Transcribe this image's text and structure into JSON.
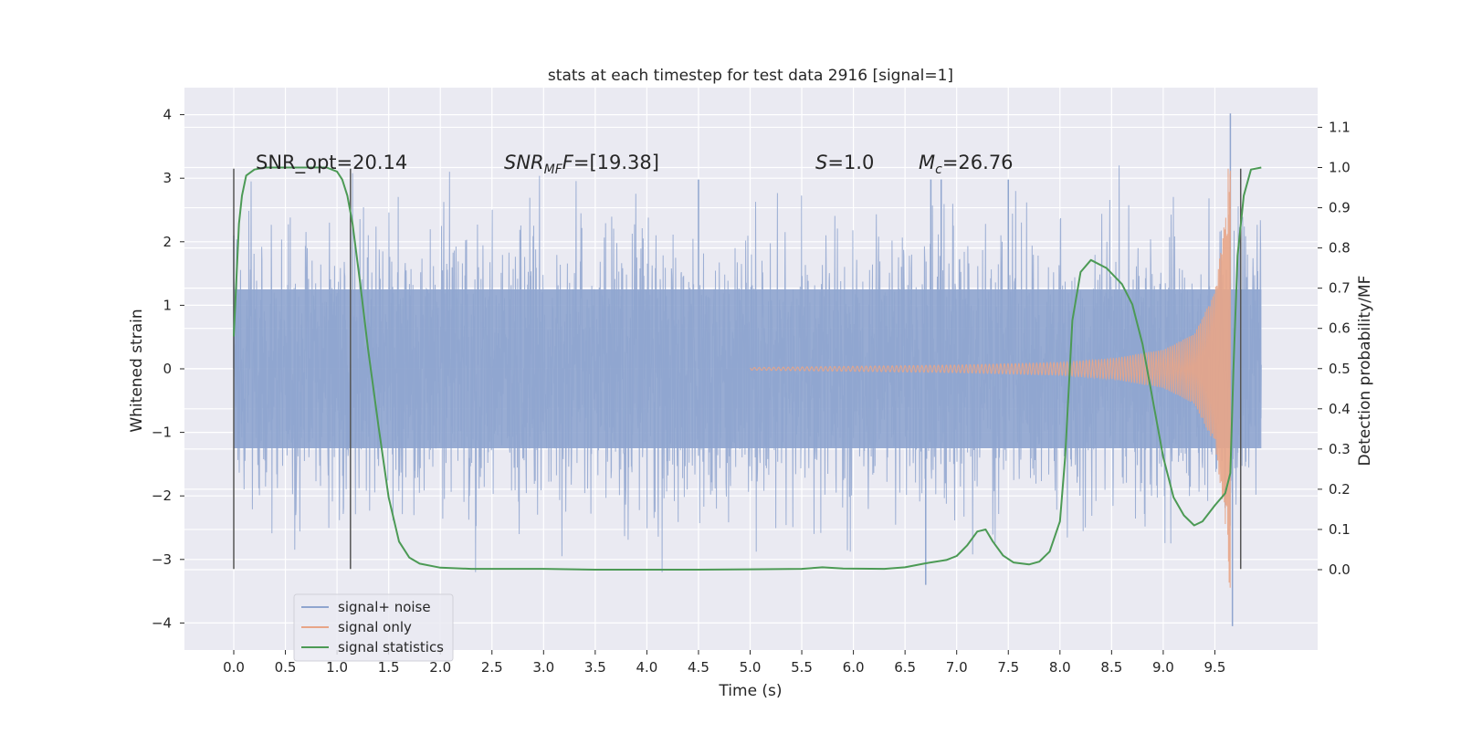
{
  "chart_data": {
    "type": "line",
    "title": "stats at each timestep for test data 2916 [signal=1]",
    "xlabel": "Time (s)",
    "ylabel": "Whitened strain",
    "ylabel_right": "Detection probability/MF",
    "xlim": [
      -0.5,
      10.5
    ],
    "ylim": [
      -4.4,
      4.4
    ],
    "ylim_right": [
      -0.19,
      1.19
    ],
    "x_ticks": [
      "0.0",
      "0.5",
      "1.0",
      "1.5",
      "2.0",
      "2.5",
      "3.0",
      "3.5",
      "4.0",
      "4.5",
      "5.0",
      "5.5",
      "6.0",
      "6.5",
      "7.0",
      "7.5",
      "8.0",
      "8.5",
      "9.0",
      "9.5"
    ],
    "y_ticks": [
      "4",
      "3",
      "2",
      "1",
      "0",
      "−1",
      "−2",
      "−3",
      "−4"
    ],
    "y_ticks_right": [
      "1.1",
      "1.0",
      "0.9",
      "0.8",
      "0.7",
      "0.6",
      "0.5",
      "0.4",
      "0.3",
      "0.2",
      "0.1",
      "0.0"
    ],
    "grid": true,
    "legend_position": "lower left",
    "annotations": [
      {
        "label": "SNR_opt",
        "value": "=20.14"
      },
      {
        "label": "SNR",
        "sub": "MF",
        "value": "=[19.38]"
      },
      {
        "label": "S",
        "value": "=1.0"
      },
      {
        "label": "M",
        "sub": "c",
        "value": "=26.76"
      }
    ],
    "vertical_lines": [
      0.0,
      1.13,
      9.75
    ],
    "series": [
      {
        "name": "signal+ noise",
        "color": "#8fa5cf",
        "axis": "left",
        "t_range": [
          0.0,
          9.95
        ],
        "envelope_abs": 1.25,
        "peak_max": 4.02,
        "peak_min": -4.05,
        "notable_peaks": [
          {
            "x": 0.0,
            "y": 2.1
          },
          {
            "x": 1.13,
            "y": 2.2
          },
          {
            "x": 4.5,
            "y": 2.98
          },
          {
            "x": 6.75,
            "y": 2.98
          },
          {
            "x": 6.85,
            "y": 2.98
          },
          {
            "x": 7.5,
            "y": 2.98
          },
          {
            "x": 6.7,
            "y": -3.4
          },
          {
            "x": 9.65,
            "y": 4.02
          },
          {
            "x": 9.67,
            "y": -4.05
          }
        ]
      },
      {
        "name": "signal only",
        "color": "#e8a587",
        "axis": "left",
        "description_values": {
          "start_t": 5.0,
          "amplitude_start": 0.02,
          "merger_t": 9.65,
          "amplitude_merger": 3.8
        },
        "envelope": [
          {
            "x": 5.0,
            "y": 0.02
          },
          {
            "x": 6.0,
            "y": 0.04
          },
          {
            "x": 7.0,
            "y": 0.06
          },
          {
            "x": 8.0,
            "y": 0.1
          },
          {
            "x": 8.5,
            "y": 0.16
          },
          {
            "x": 9.0,
            "y": 0.3
          },
          {
            "x": 9.3,
            "y": 0.55
          },
          {
            "x": 9.5,
            "y": 1.2
          },
          {
            "x": 9.6,
            "y": 2.4
          },
          {
            "x": 9.65,
            "y": 3.8
          }
        ]
      },
      {
        "name": "signal statistics",
        "color": "#4c9a55",
        "axis": "right",
        "points": [
          [
            0.0,
            0.58
          ],
          [
            0.05,
            0.86
          ],
          [
            0.08,
            0.93
          ],
          [
            0.12,
            0.98
          ],
          [
            0.2,
            0.995
          ],
          [
            0.3,
            1.0
          ],
          [
            0.5,
            1.0
          ],
          [
            0.7,
            1.0
          ],
          [
            0.9,
            1.0
          ],
          [
            1.0,
            0.99
          ],
          [
            1.05,
            0.97
          ],
          [
            1.1,
            0.93
          ],
          [
            1.15,
            0.86
          ],
          [
            1.22,
            0.72
          ],
          [
            1.3,
            0.55
          ],
          [
            1.4,
            0.36
          ],
          [
            1.5,
            0.18
          ],
          [
            1.6,
            0.07
          ],
          [
            1.7,
            0.03
          ],
          [
            1.8,
            0.015
          ],
          [
            2.0,
            0.005
          ],
          [
            2.3,
            0.002
          ],
          [
            3.0,
            0.002
          ],
          [
            3.5,
            0.0
          ],
          [
            4.5,
            0.0
          ],
          [
            5.0,
            0.001
          ],
          [
            5.5,
            0.002
          ],
          [
            5.7,
            0.006
          ],
          [
            5.9,
            0.003
          ],
          [
            6.3,
            0.002
          ],
          [
            6.5,
            0.006
          ],
          [
            6.7,
            0.016
          ],
          [
            6.9,
            0.024
          ],
          [
            7.0,
            0.034
          ],
          [
            7.1,
            0.06
          ],
          [
            7.2,
            0.095
          ],
          [
            7.28,
            0.1
          ],
          [
            7.35,
            0.07
          ],
          [
            7.45,
            0.035
          ],
          [
            7.55,
            0.018
          ],
          [
            7.7,
            0.013
          ],
          [
            7.8,
            0.02
          ],
          [
            7.9,
            0.045
          ],
          [
            8.0,
            0.12
          ],
          [
            8.05,
            0.28
          ],
          [
            8.12,
            0.62
          ],
          [
            8.2,
            0.74
          ],
          [
            8.3,
            0.77
          ],
          [
            8.45,
            0.75
          ],
          [
            8.6,
            0.71
          ],
          [
            8.7,
            0.66
          ],
          [
            8.8,
            0.56
          ],
          [
            8.9,
            0.42
          ],
          [
            9.0,
            0.28
          ],
          [
            9.1,
            0.18
          ],
          [
            9.2,
            0.135
          ],
          [
            9.3,
            0.11
          ],
          [
            9.38,
            0.12
          ],
          [
            9.5,
            0.16
          ],
          [
            9.6,
            0.19
          ],
          [
            9.65,
            0.24
          ],
          [
            9.68,
            0.5
          ],
          [
            9.72,
            0.78
          ],
          [
            9.78,
            0.93
          ],
          [
            9.85,
            0.995
          ],
          [
            9.95,
            1.0
          ]
        ]
      }
    ]
  }
}
